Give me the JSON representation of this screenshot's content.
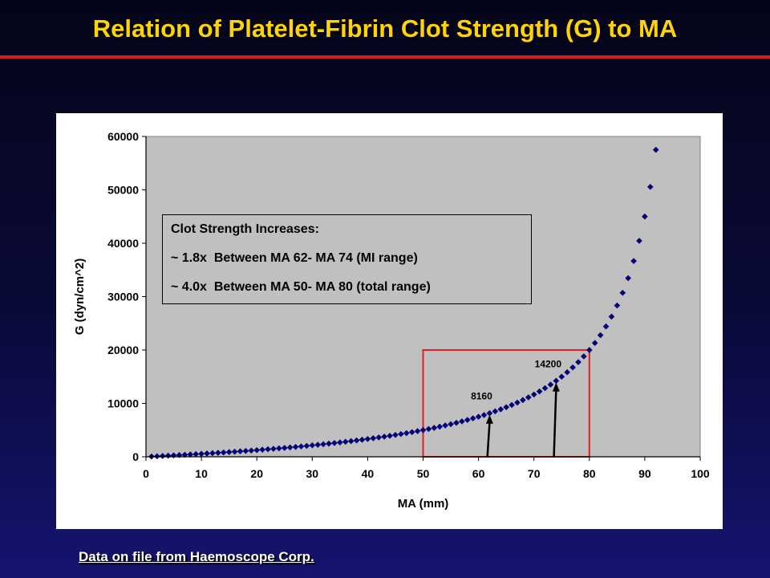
{
  "slide": {
    "title": "Relation of Platelet-Fibrin Clot Strength (G) to MA",
    "source": "Data on file from Haemoscope Corp."
  },
  "annotation": {
    "lines": [
      "Clot Strength Increases:",
      "~ 1.8x  Between MA 62- MA 74 (MI range)",
      "~ 4.0x  Between MA 50- MA 80 (total range)"
    ]
  },
  "colors": {
    "title": "#ffd400",
    "rule": "#d61c1c",
    "marker": "#000080",
    "plot_area": "#c0c0c0",
    "highlight_box": "#e02020"
  },
  "chart_data": {
    "type": "scatter",
    "title": "",
    "xlabel": "MA (mm)",
    "ylabel": "G (dyn/cm^2)",
    "xlim": [
      0,
      100
    ],
    "ylim": [
      0,
      60000
    ],
    "x_ticks": [
      0,
      10,
      20,
      30,
      40,
      50,
      60,
      70,
      80,
      90,
      100
    ],
    "y_ticks": [
      0,
      10000,
      20000,
      30000,
      40000,
      50000,
      60000
    ],
    "formula": "G = 5000*MA/(100-MA)",
    "marker": "diamond",
    "series": [
      {
        "values": [
          [
            1,
            51
          ],
          [
            2,
            102
          ],
          [
            3,
            155
          ],
          [
            4,
            208
          ],
          [
            5,
            263
          ],
          [
            6,
            319
          ],
          [
            7,
            376
          ],
          [
            8,
            435
          ],
          [
            9,
            495
          ],
          [
            10,
            556
          ],
          [
            11,
            618
          ],
          [
            12,
            682
          ],
          [
            13,
            747
          ],
          [
            14,
            814
          ],
          [
            15,
            882
          ],
          [
            16,
            952
          ],
          [
            17,
            1024
          ],
          [
            18,
            1098
          ],
          [
            19,
            1173
          ],
          [
            20,
            1250
          ],
          [
            21,
            1329
          ],
          [
            22,
            1410
          ],
          [
            23,
            1494
          ],
          [
            24,
            1579
          ],
          [
            25,
            1667
          ],
          [
            26,
            1757
          ],
          [
            27,
            1849
          ],
          [
            28,
            1944
          ],
          [
            29,
            2042
          ],
          [
            30,
            2143
          ],
          [
            31,
            2246
          ],
          [
            32,
            2353
          ],
          [
            33,
            2463
          ],
          [
            34,
            2576
          ],
          [
            35,
            2692
          ],
          [
            36,
            2813
          ],
          [
            37,
            2937
          ],
          [
            38,
            3065
          ],
          [
            39,
            3197
          ],
          [
            40,
            3333
          ],
          [
            41,
            3475
          ],
          [
            42,
            3621
          ],
          [
            43,
            3772
          ],
          [
            44,
            3929
          ],
          [
            45,
            4091
          ],
          [
            46,
            4259
          ],
          [
            47,
            4434
          ],
          [
            48,
            4615
          ],
          [
            49,
            4804
          ],
          [
            50,
            5000
          ],
          [
            51,
            5204
          ],
          [
            52,
            5417
          ],
          [
            53,
            5638
          ],
          [
            54,
            5870
          ],
          [
            55,
            6111
          ],
          [
            56,
            6364
          ],
          [
            57,
            6628
          ],
          [
            58,
            6905
          ],
          [
            59,
            7195
          ],
          [
            60,
            7500
          ],
          [
            61,
            7821
          ],
          [
            62,
            8158
          ],
          [
            63,
            8514
          ],
          [
            64,
            8889
          ],
          [
            65,
            9286
          ],
          [
            66,
            9706
          ],
          [
            67,
            10152
          ],
          [
            68,
            10625
          ],
          [
            69,
            11129
          ],
          [
            70,
            11667
          ],
          [
            71,
            12241
          ],
          [
            72,
            12857
          ],
          [
            73,
            13519
          ],
          [
            74,
            14231
          ],
          [
            75,
            15000
          ],
          [
            76,
            15833
          ],
          [
            77,
            16739
          ],
          [
            78,
            17727
          ],
          [
            79,
            18810
          ],
          [
            80,
            20000
          ],
          [
            81,
            21316
          ],
          [
            82,
            22778
          ],
          [
            83,
            24412
          ],
          [
            84,
            26250
          ],
          [
            85,
            28333
          ],
          [
            86,
            30714
          ],
          [
            87,
            33462
          ],
          [
            88,
            36667
          ],
          [
            89,
            40455
          ],
          [
            90,
            45000
          ],
          [
            91,
            50556
          ],
          [
            92,
            57500
          ]
        ]
      }
    ],
    "highlight_region": {
      "x": [
        50,
        80
      ],
      "y": [
        0,
        20000
      ]
    },
    "arrows": [
      {
        "x": 62,
        "value": 8160,
        "label": "8160"
      },
      {
        "x": 74,
        "value": 14200,
        "label": "14200"
      }
    ],
    "grid": false,
    "legend": "none"
  }
}
